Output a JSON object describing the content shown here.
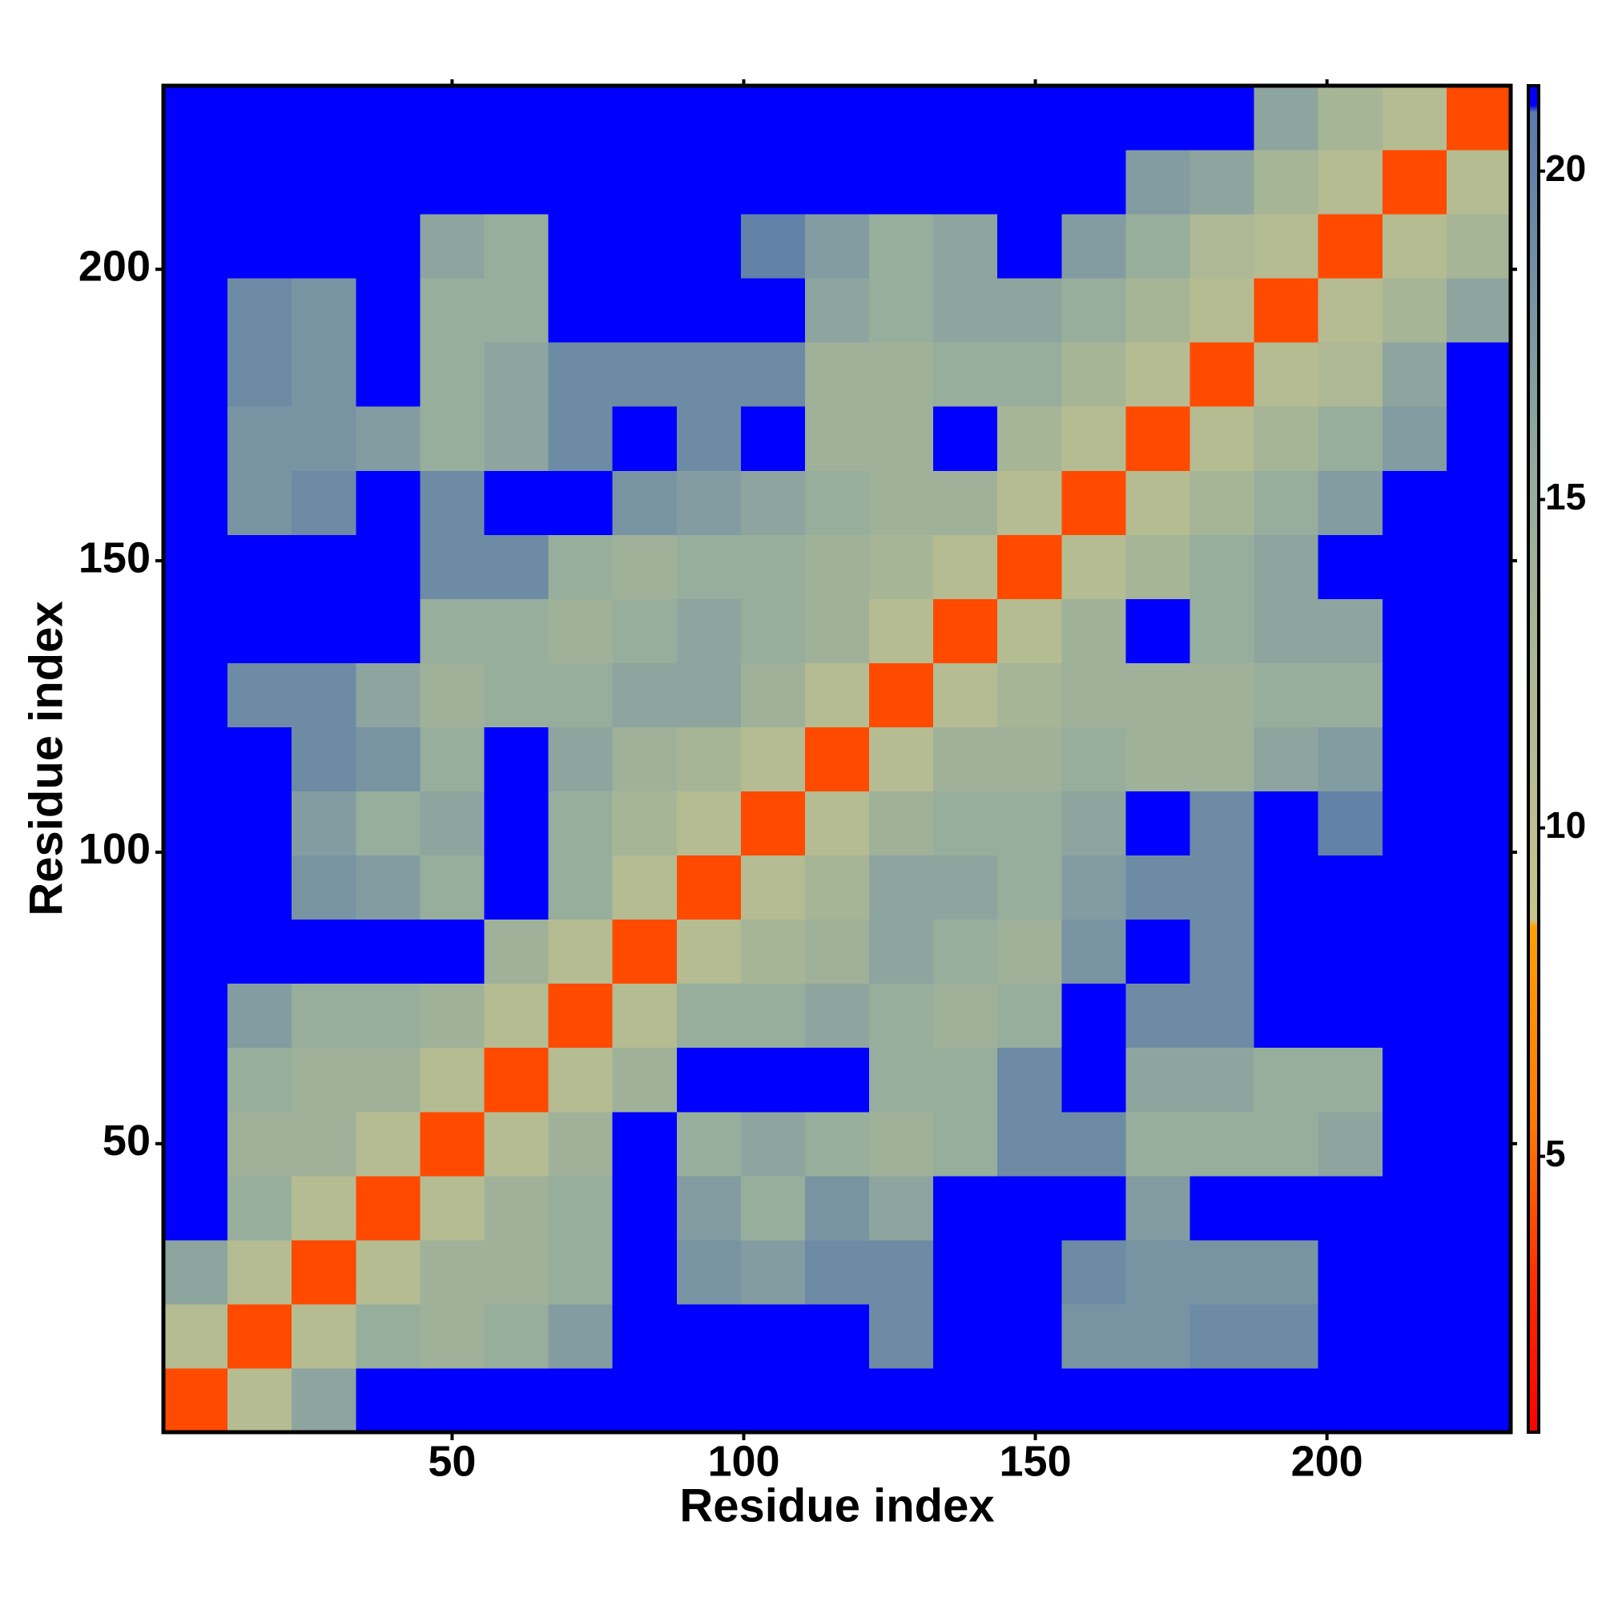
{
  "chart_data": {
    "type": "heatmap",
    "xlabel": "Residue index",
    "ylabel": "Residue index",
    "xlim": [
      0.5,
      231.5
    ],
    "ylim": [
      0.5,
      231.5
    ],
    "xticks": [
      50,
      100,
      150,
      200
    ],
    "yticks": [
      50,
      100,
      150,
      200
    ],
    "xbins": [
      0.5,
      11.5,
      22.5,
      33.5,
      44.5,
      55.5,
      66.5,
      77.5,
      88.5,
      99.5,
      110.5,
      121.5,
      132.5,
      143.5,
      154.5,
      165.5,
      176.5,
      187.5,
      198.5,
      209.5,
      220.5,
      231.5
    ],
    "ybins": [
      0.5,
      11.5,
      22.5,
      33.5,
      44.5,
      55.5,
      66.5,
      77.5,
      88.5,
      99.5,
      110.5,
      121.5,
      132.5,
      143.5,
      154.5,
      165.5,
      176.5,
      187.5,
      198.5,
      209.5,
      220.5,
      231.5
    ],
    "z": [
      [
        4,
        11,
        16,
        21,
        21,
        21,
        21,
        21,
        21,
        21,
        21,
        21,
        21,
        21,
        21,
        21,
        21,
        21,
        21,
        21,
        21
      ],
      [
        11,
        4,
        11,
        15,
        14,
        15,
        17,
        21,
        21,
        21,
        21,
        19,
        21,
        21,
        18,
        18,
        19,
        19,
        21,
        21,
        21
      ],
      [
        16,
        11,
        4,
        11,
        14,
        14,
        15,
        21,
        18,
        17,
        19,
        19,
        21,
        21,
        19,
        18,
        18,
        18,
        21,
        21,
        21
      ],
      [
        21,
        15,
        11,
        4,
        11,
        14,
        15,
        21,
        17,
        15,
        18,
        16,
        21,
        21,
        21,
        17,
        21,
        21,
        21,
        21,
        21
      ],
      [
        21,
        14,
        14,
        11,
        4,
        11,
        14,
        21,
        15,
        16,
        15,
        14,
        15,
        19,
        19,
        15,
        15,
        15,
        16,
        21,
        21
      ],
      [
        21,
        15,
        14,
        14,
        11,
        4,
        11,
        14,
        21,
        21,
        21,
        15,
        15,
        19,
        21,
        16,
        16,
        15,
        15,
        21,
        21
      ],
      [
        21,
        17,
        15,
        15,
        14,
        11,
        4,
        11,
        15,
        15,
        16,
        15,
        14,
        15,
        21,
        19,
        19,
        21,
        21,
        21,
        21
      ],
      [
        21,
        21,
        21,
        21,
        21,
        14,
        11,
        4,
        11,
        13,
        14,
        16,
        15,
        14,
        18,
        21,
        19,
        21,
        21,
        21,
        21
      ],
      [
        21,
        21,
        18,
        17,
        15,
        21,
        15,
        11,
        4,
        11,
        13,
        16,
        16,
        15,
        17,
        19,
        19,
        21,
        21,
        21,
        21
      ],
      [
        21,
        21,
        17,
        15,
        16,
        21,
        15,
        13,
        11,
        4,
        11,
        14,
        15,
        15,
        16,
        21,
        19,
        21,
        20,
        21,
        21
      ],
      [
        21,
        21,
        19,
        18,
        15,
        21,
        16,
        14,
        13,
        11,
        4,
        11,
        14,
        14,
        15,
        14,
        14,
        16,
        17,
        21,
        21
      ],
      [
        21,
        19,
        19,
        16,
        14,
        15,
        15,
        16,
        16,
        14,
        11,
        4,
        11,
        13,
        14,
        14,
        14,
        15,
        15,
        21,
        21
      ],
      [
        21,
        21,
        21,
        21,
        15,
        15,
        14,
        15,
        16,
        15,
        14,
        11,
        4,
        11,
        14,
        21,
        15,
        16,
        16,
        21,
        21
      ],
      [
        21,
        21,
        21,
        21,
        19,
        19,
        15,
        14,
        15,
        15,
        14,
        13,
        11,
        4,
        11,
        13,
        15,
        16,
        21,
        21,
        21
      ],
      [
        21,
        18,
        19,
        21,
        19,
        21,
        21,
        18,
        17,
        16,
        15,
        14,
        14,
        11,
        4,
        11,
        13,
        15,
        17,
        21,
        21
      ],
      [
        21,
        18,
        18,
        17,
        15,
        16,
        19,
        21,
        19,
        21,
        14,
        14,
        21,
        13,
        11,
        4,
        11,
        13,
        15,
        17,
        21
      ],
      [
        21,
        19,
        18,
        21,
        15,
        16,
        19,
        19,
        19,
        19,
        14,
        14,
        15,
        15,
        13,
        11,
        4,
        11,
        12,
        16,
        21
      ],
      [
        21,
        19,
        18,
        21,
        15,
        15,
        21,
        21,
        21,
        21,
        16,
        15,
        16,
        16,
        15,
        13,
        11,
        4,
        11,
        13,
        16
      ],
      [
        21,
        21,
        21,
        21,
        16,
        15,
        21,
        21,
        21,
        20,
        17,
        15,
        16,
        21,
        17,
        15,
        12,
        11,
        4,
        11,
        13
      ],
      [
        21,
        21,
        21,
        21,
        21,
        21,
        21,
        21,
        21,
        21,
        21,
        21,
        21,
        21,
        21,
        17,
        16,
        13,
        11,
        4,
        11
      ],
      [
        21,
        21,
        21,
        21,
        21,
        21,
        21,
        21,
        21,
        21,
        21,
        21,
        21,
        21,
        21,
        21,
        21,
        16,
        13,
        11,
        4
      ]
    ],
    "zlim": [
      0.8,
      21.3
    ],
    "zticks": [
      5,
      10,
      15,
      20
    ],
    "colorscale": [
      {
        "value": 0.8,
        "color": "#ff0000"
      },
      {
        "value": 3,
        "color": "#ff2a00"
      },
      {
        "value": 5.5,
        "color": "#ff7a00"
      },
      {
        "value": 8.5,
        "color": "#ffa000"
      },
      {
        "value": 8.6,
        "color": "#c8c48c"
      },
      {
        "value": 15,
        "color": "#98ae9c"
      },
      {
        "value": 20.9,
        "color": "#5a7aaa"
      },
      {
        "value": 21,
        "color": "#0000ff"
      },
      {
        "value": 21.3,
        "color": "#0000ff"
      }
    ]
  }
}
